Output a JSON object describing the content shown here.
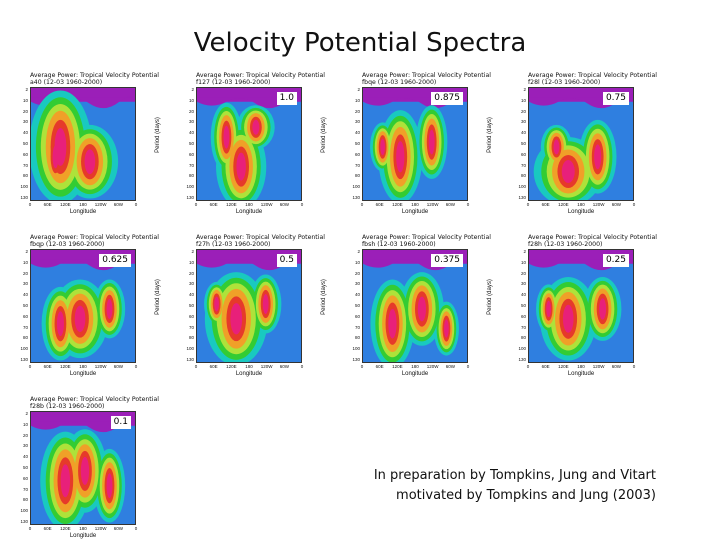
{
  "title": "Velocity Potential Spectra",
  "panels": [
    {
      "title": "Average Power: Tropical Velocity Potential",
      "subtitle": "a40 (12-03 1960-2000)",
      "badge": ""
    },
    {
      "title": "Average Power: Tropical Velocity Potential",
      "subtitle": "f127 (12-03 1960-2000)",
      "badge": "1.0"
    },
    {
      "title": "Average Power: Tropical Velocity Potential",
      "subtitle": "fbqe (12-03 1960-2000)",
      "badge": "0.875"
    },
    {
      "title": "Average Power: Tropical Velocity Potential",
      "subtitle": "f28l (12-03 1960-2000)",
      "badge": "0.75"
    },
    {
      "title": "Average Power: Tropical Velocity Potential",
      "subtitle": "fbqp (12-03 1960-2000)",
      "badge": "0.625"
    },
    {
      "title": "Average Power: Tropical Velocity Potential",
      "subtitle": "f27h (12-03 1960-2000)",
      "badge": "0.5"
    },
    {
      "title": "Average Power: Tropical Velocity Potential",
      "subtitle": "fbsh (12-03 1960-2000)",
      "badge": "0.375"
    },
    {
      "title": "Average Power: Tropical Velocity Potential",
      "subtitle": "f28h (12-03 1960-2000)",
      "badge": "0.25"
    },
    {
      "title": "Average Power: Tropical Velocity Potential",
      "subtitle": "f28b (12-03 1960-2000)",
      "badge": "0.1"
    }
  ],
  "axes": {
    "ylabel": "Period (days)",
    "xlabel": "Longitude",
    "yticks": [
      "2",
      "10",
      "20",
      "30",
      "40",
      "50",
      "60",
      "70",
      "80",
      "100",
      "130"
    ],
    "xticks": [
      "0",
      "60E",
      "120E",
      "180",
      "120W",
      "60W",
      "0"
    ]
  },
  "caption": {
    "line1": "In preparation by Tompkins, Jung and Vitart",
    "line2": "motivated by Tompkins and Jung (2003)"
  },
  "colors": {
    "background": "#2f7fe0",
    "top_band": "#9b1fb8",
    "cyan": "#19c9c0",
    "green": "#33cc33",
    "yellow_green": "#aee23a",
    "orange": "#f0a028",
    "red": "#e63a2a",
    "magenta": "#e8207a"
  }
}
